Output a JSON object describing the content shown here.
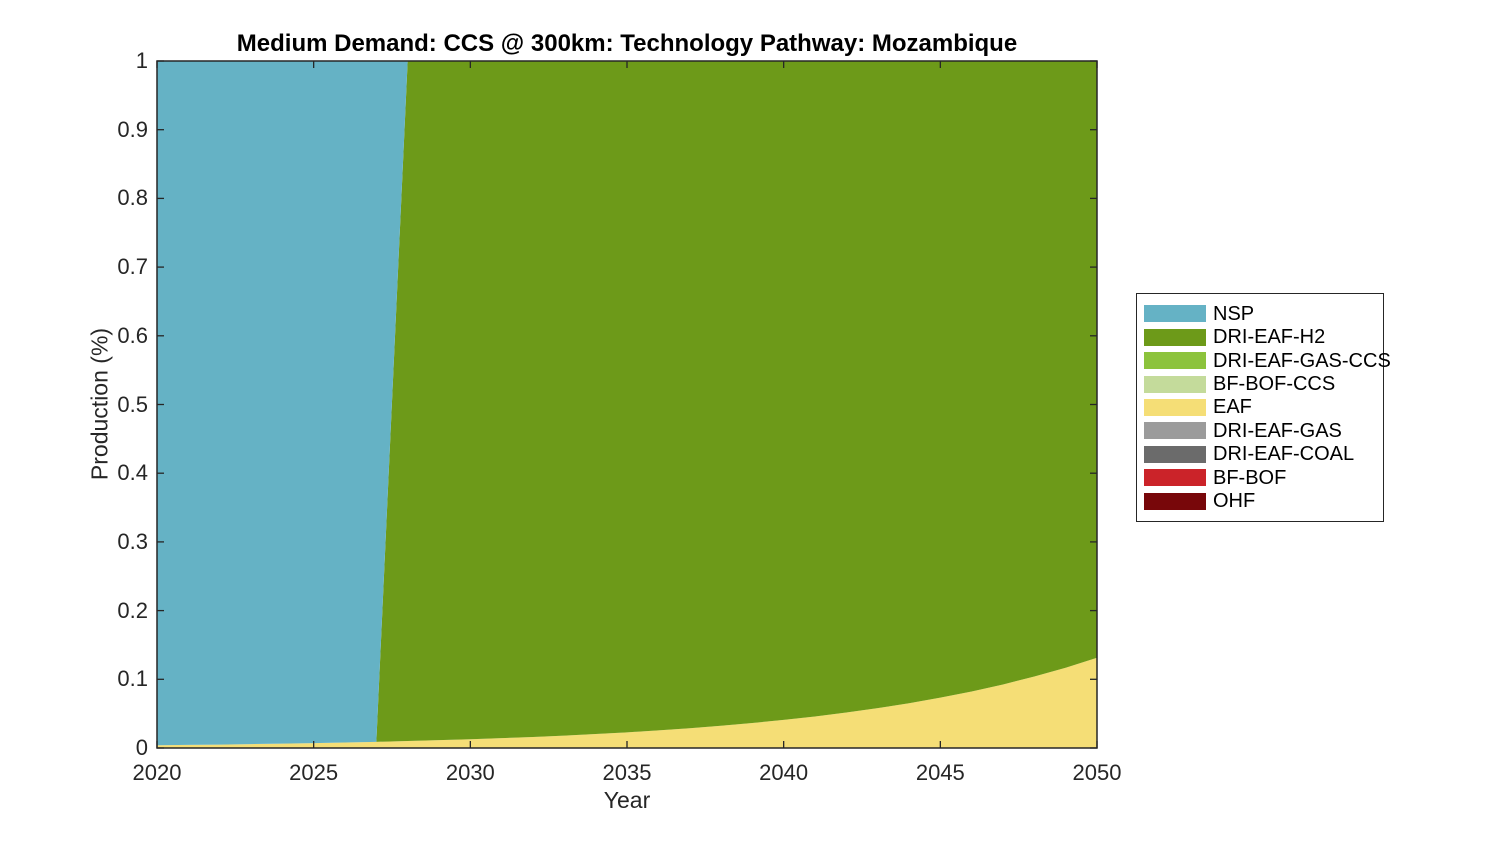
{
  "chart_data": {
    "type": "area",
    "stacked": true,
    "title": "Medium Demand: CCS @ 300km: Technology Pathway: Mozambique",
    "xlabel": "Year",
    "ylabel": "Production (%)",
    "xlim": [
      2020,
      2050
    ],
    "ylim": [
      0,
      1
    ],
    "grid": false,
    "legend_position": "right-outside",
    "axis_color": "#262626",
    "x": [
      2020,
      2021,
      2022,
      2023,
      2024,
      2025,
      2026,
      2027,
      2028,
      2029,
      2030,
      2031,
      2032,
      2033,
      2034,
      2035,
      2036,
      2037,
      2038,
      2039,
      2040,
      2041,
      2042,
      2043,
      2044,
      2045,
      2046,
      2047,
      2048,
      2049,
      2050
    ],
    "xticks": [
      2020,
      2025,
      2030,
      2035,
      2040,
      2045,
      2050
    ],
    "xtick_labels": [
      "2020",
      "2025",
      "2030",
      "2035",
      "2040",
      "2045",
      "2050"
    ],
    "yticks": [
      0,
      0.1,
      0.2,
      0.3,
      0.4,
      0.5,
      0.6,
      0.7,
      0.8,
      0.9,
      1
    ],
    "ytick_labels": [
      "0",
      "0.1",
      "0.2",
      "0.3",
      "0.4",
      "0.5",
      "0.6",
      "0.7",
      "0.8",
      "0.9",
      "1"
    ],
    "stack_order_bottom_to_top": [
      "OHF",
      "BF-BOF",
      "DRI-EAF-COAL",
      "DRI-EAF-GAS",
      "EAF",
      "BF-BOF-CCS",
      "DRI-EAF-GAS-CCS",
      "DRI-EAF-H2",
      "NSP"
    ],
    "series": [
      {
        "name": "NSP",
        "color": "#65B2C5",
        "values": [
          0.996,
          0.9955,
          0.995,
          0.9943,
          0.9936,
          0.9929,
          0.992,
          0.991,
          0,
          0,
          0,
          0,
          0,
          0,
          0,
          0,
          0,
          0,
          0,
          0,
          0,
          0,
          0,
          0,
          0,
          0,
          0,
          0,
          0,
          0,
          0
        ]
      },
      {
        "name": "DRI-EAF-H2",
        "color": "#6D9A19",
        "values": [
          0,
          0,
          0,
          0,
          0,
          0,
          0,
          0,
          0.9899,
          0.9886,
          0.9872,
          0.9857,
          0.9839,
          0.9819,
          0.9797,
          0.9772,
          0.9743,
          0.9712,
          0.9676,
          0.9636,
          0.9591,
          0.9541,
          0.9484,
          0.942,
          0.9348,
          0.9267,
          0.9177,
          0.9075,
          0.896,
          0.8831,
          0.8686
        ]
      },
      {
        "name": "DRI-EAF-GAS-CCS",
        "color": "#8CC33C",
        "values": [
          0,
          0,
          0,
          0,
          0,
          0,
          0,
          0,
          0,
          0,
          0,
          0,
          0,
          0,
          0,
          0,
          0,
          0,
          0,
          0,
          0,
          0,
          0,
          0,
          0,
          0,
          0,
          0,
          0,
          0,
          0
        ]
      },
      {
        "name": "BF-BOF-CCS",
        "color": "#C4DB9B",
        "values": [
          0,
          0,
          0,
          0,
          0,
          0,
          0,
          0,
          0,
          0,
          0,
          0,
          0,
          0,
          0,
          0,
          0,
          0,
          0,
          0,
          0,
          0,
          0,
          0,
          0,
          0,
          0,
          0,
          0,
          0,
          0
        ]
      },
      {
        "name": "EAF",
        "color": "#F5DE76",
        "values": [
          0.004,
          0.0045,
          0.005,
          0.0057,
          0.0064,
          0.0071,
          0.008,
          0.009,
          0.0101,
          0.0114,
          0.0128,
          0.0143,
          0.0161,
          0.0181,
          0.0203,
          0.0228,
          0.0257,
          0.0288,
          0.0324,
          0.0364,
          0.0409,
          0.0459,
          0.0516,
          0.058,
          0.0652,
          0.0733,
          0.0823,
          0.0925,
          0.104,
          0.1169,
          0.1314
        ]
      },
      {
        "name": "DRI-EAF-GAS",
        "color": "#9B9B9B",
        "values": [
          0,
          0,
          0,
          0,
          0,
          0,
          0,
          0,
          0,
          0,
          0,
          0,
          0,
          0,
          0,
          0,
          0,
          0,
          0,
          0,
          0,
          0,
          0,
          0,
          0,
          0,
          0,
          0,
          0,
          0,
          0
        ]
      },
      {
        "name": "DRI-EAF-COAL",
        "color": "#6B6B6B",
        "values": [
          0,
          0,
          0,
          0,
          0,
          0,
          0,
          0,
          0,
          0,
          0,
          0,
          0,
          0,
          0,
          0,
          0,
          0,
          0,
          0,
          0,
          0,
          0,
          0,
          0,
          0,
          0,
          0,
          0,
          0,
          0
        ]
      },
      {
        "name": "BF-BOF",
        "color": "#CB2329",
        "values": [
          0,
          0,
          0,
          0,
          0,
          0,
          0,
          0,
          0,
          0,
          0,
          0,
          0,
          0,
          0,
          0,
          0,
          0,
          0,
          0,
          0,
          0,
          0,
          0,
          0,
          0,
          0,
          0,
          0,
          0,
          0
        ]
      },
      {
        "name": "OHF",
        "color": "#78070A",
        "values": [
          0,
          0,
          0,
          0,
          0,
          0,
          0,
          0,
          0,
          0,
          0,
          0,
          0,
          0,
          0,
          0,
          0,
          0,
          0,
          0,
          0,
          0,
          0,
          0,
          0,
          0,
          0,
          0,
          0,
          0,
          0
        ]
      }
    ]
  }
}
